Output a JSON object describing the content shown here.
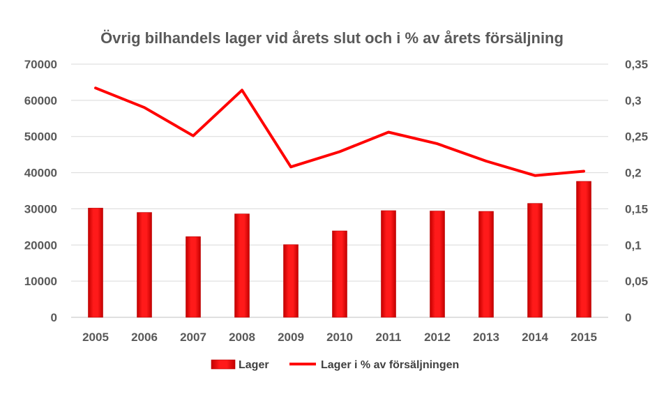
{
  "chart_data": {
    "type": "bar",
    "title": "Övrig bilhandels lager vid årets slut och i % av årets försäljning",
    "categories": [
      "2005",
      "2006",
      "2007",
      "2008",
      "2009",
      "2010",
      "2011",
      "2012",
      "2013",
      "2014",
      "2015"
    ],
    "series": [
      {
        "name": "Lager",
        "type": "bar",
        "axis": "left",
        "color": "#ff0000",
        "values": [
          30200,
          29000,
          22300,
          28600,
          20100,
          23900,
          29500,
          29400,
          29300,
          31500,
          37600
        ]
      },
      {
        "name": "Lager i % av försäljningen",
        "type": "line",
        "axis": "right",
        "color": "#ff0000",
        "values": [
          0.317,
          0.29,
          0.251,
          0.314,
          0.208,
          0.229,
          0.256,
          0.24,
          0.216,
          0.196,
          0.202
        ]
      }
    ],
    "y_left": {
      "min": 0,
      "max": 70000,
      "ticks": [
        0,
        10000,
        20000,
        30000,
        40000,
        50000,
        60000,
        70000
      ],
      "tick_labels": [
        "0",
        "10000",
        "20000",
        "30000",
        "40000",
        "50000",
        "60000",
        "70000"
      ]
    },
    "y_right": {
      "min": 0,
      "max": 0.35,
      "ticks": [
        0,
        0.05,
        0.1,
        0.15,
        0.2,
        0.25,
        0.3,
        0.35
      ],
      "tick_labels": [
        "0",
        "0,05",
        "0,1",
        "0,15",
        "0,2",
        "0,25",
        "0,3",
        "0,35"
      ]
    },
    "grid": true,
    "legend_position": "bottom"
  }
}
